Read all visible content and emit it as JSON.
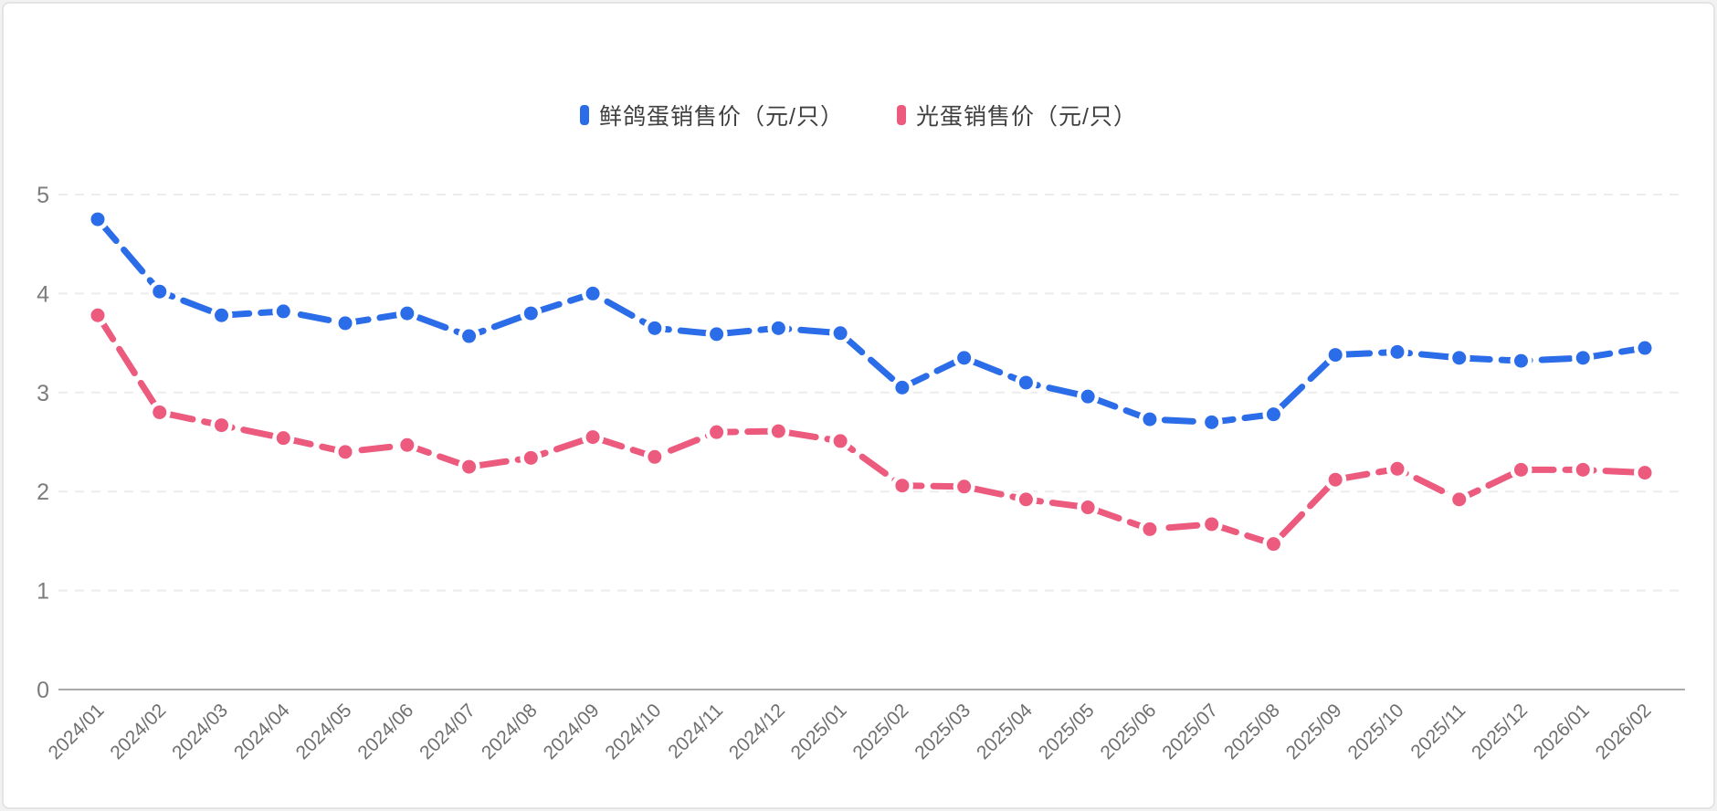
{
  "page": {
    "background_color": "#f2f2f2",
    "card_background": "#ffffff",
    "card_border_color": "#e4e4e4"
  },
  "chart_data": {
    "type": "line",
    "title": "",
    "xlabel": "",
    "ylabel": "",
    "categories": [
      "2024/01",
      "2024/02",
      "2024/03",
      "2024/04",
      "2024/05",
      "2024/06",
      "2024/07",
      "2024/08",
      "2024/09",
      "2024/10",
      "2024/11",
      "2024/12",
      "2025/01",
      "2025/02",
      "2025/03",
      "2025/04",
      "2025/05",
      "2025/06",
      "2025/07",
      "2025/08",
      "2025/09",
      "2025/10",
      "2025/11",
      "2025/12",
      "2026/01",
      "2026/02"
    ],
    "series": [
      {
        "name": "鲜鸽蛋销售价（元/只）",
        "color": "#2b6ce8",
        "values": [
          4.75,
          4.02,
          3.78,
          3.82,
          3.7,
          3.8,
          3.57,
          3.8,
          4.0,
          3.65,
          3.59,
          3.65,
          3.6,
          3.05,
          3.35,
          3.1,
          2.96,
          2.73,
          2.7,
          2.78,
          3.38,
          3.41,
          3.35,
          3.32,
          3.35,
          3.45
        ]
      },
      {
        "name": "光蛋销售价（元/只）",
        "color": "#ec5a7e",
        "values": [
          3.78,
          2.8,
          2.67,
          2.54,
          2.4,
          2.47,
          2.25,
          2.34,
          2.55,
          2.35,
          2.6,
          2.61,
          2.51,
          2.06,
          2.05,
          1.92,
          1.84,
          1.62,
          1.67,
          1.47,
          2.12,
          2.23,
          1.92,
          2.22,
          2.22,
          2.19
        ]
      }
    ],
    "ylim": [
      0,
      5
    ],
    "yticks": [
      0,
      1,
      2,
      3,
      4,
      5
    ],
    "grid": "horizontal dashed gridlines at each y tick, solid baseline at 0",
    "legend_position": "top-center",
    "line_style": "thick dashed lines with round dot markers (white halo)",
    "x_tick_rotation_deg": -45,
    "colors": {
      "grid": "#ececec",
      "axis": "#aaaaaa",
      "y_tick_label": "#7c7c7c",
      "x_tick_label": "#6f6f6f",
      "legend_text": "#3f3f3f",
      "marker_halo": "#ffffff"
    }
  }
}
